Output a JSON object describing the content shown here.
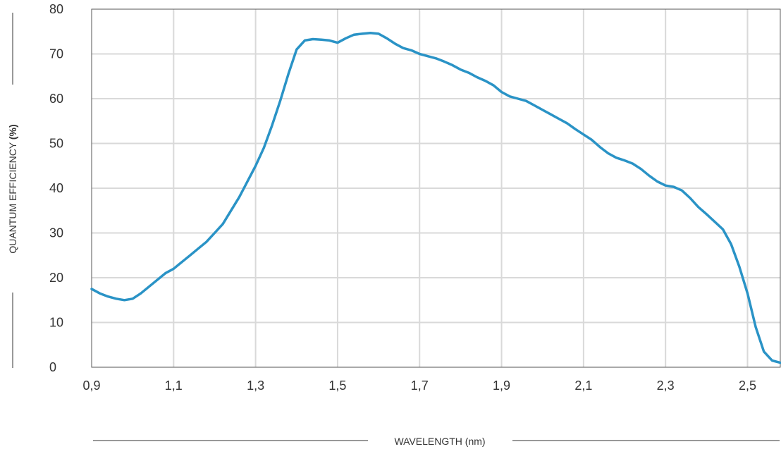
{
  "chart_data": {
    "type": "line",
    "title": "",
    "xlabel": "WAVELENGTH (nm)",
    "ylabel_main": "QUANTUM EFFICIENCY ",
    "ylabel_unit": "(%)",
    "xlim": [
      0.9,
      2.58
    ],
    "ylim": [
      0,
      80
    ],
    "grid": true,
    "x_ticks": [
      0.9,
      1.1,
      1.3,
      1.5,
      1.7,
      1.9,
      2.1,
      2.3,
      2.5
    ],
    "x_tick_labels": [
      "0,9",
      "1,1",
      "1,3",
      "1,5",
      "1,7",
      "1,9",
      "2,1",
      "2,3",
      "2,5"
    ],
    "y_ticks": [
      0,
      10,
      20,
      30,
      40,
      50,
      60,
      70,
      80
    ],
    "y_tick_labels": [
      "0",
      "10",
      "20",
      "30",
      "40",
      "50",
      "60",
      "70",
      "80"
    ],
    "line_color": "#2a93c6",
    "grid_color": "#d9d9d9",
    "series": [
      {
        "x": [
          0.9,
          0.92,
          0.94,
          0.96,
          0.98,
          1.0,
          1.02,
          1.04,
          1.06,
          1.08,
          1.1,
          1.12,
          1.14,
          1.16,
          1.18,
          1.2,
          1.22,
          1.24,
          1.26,
          1.28,
          1.3,
          1.32,
          1.34,
          1.36,
          1.38,
          1.4,
          1.42,
          1.44,
          1.46,
          1.48,
          1.5,
          1.52,
          1.54,
          1.56,
          1.58,
          1.6,
          1.62,
          1.64,
          1.66,
          1.68,
          1.7,
          1.72,
          1.74,
          1.76,
          1.78,
          1.8,
          1.82,
          1.84,
          1.86,
          1.88,
          1.9,
          1.92,
          1.94,
          1.96,
          1.98,
          2.0,
          2.02,
          2.04,
          2.06,
          2.08,
          2.1,
          2.12,
          2.14,
          2.16,
          2.18,
          2.2,
          2.22,
          2.24,
          2.26,
          2.28,
          2.3,
          2.32,
          2.34,
          2.36,
          2.38,
          2.4,
          2.42,
          2.44,
          2.46,
          2.48,
          2.5,
          2.52,
          2.54,
          2.56,
          2.58
        ],
        "y": [
          17.5,
          16.5,
          15.8,
          15.3,
          15.0,
          15.3,
          16.5,
          18.0,
          19.5,
          21.0,
          22.0,
          23.5,
          25.0,
          26.5,
          28.0,
          30.0,
          32.0,
          35.0,
          38.0,
          41.5,
          45.0,
          49.0,
          54.0,
          59.5,
          65.5,
          71.0,
          73.0,
          73.3,
          73.2,
          73.0,
          72.5,
          73.5,
          74.3,
          74.5,
          74.7,
          74.5,
          73.5,
          72.3,
          71.3,
          70.8,
          70.0,
          69.5,
          69.0,
          68.3,
          67.5,
          66.5,
          65.8,
          64.8,
          64.0,
          63.0,
          61.5,
          60.5,
          60.0,
          59.5,
          58.5,
          57.5,
          56.5,
          55.5,
          54.5,
          53.2,
          52.0,
          50.8,
          49.2,
          47.8,
          46.8,
          46.2,
          45.5,
          44.3,
          42.8,
          41.5,
          40.6,
          40.3,
          39.5,
          37.8,
          35.8,
          34.2,
          32.5,
          30.8,
          27.5,
          22.5,
          16.5,
          9.0,
          3.5,
          1.5,
          1.0
        ]
      }
    ]
  }
}
